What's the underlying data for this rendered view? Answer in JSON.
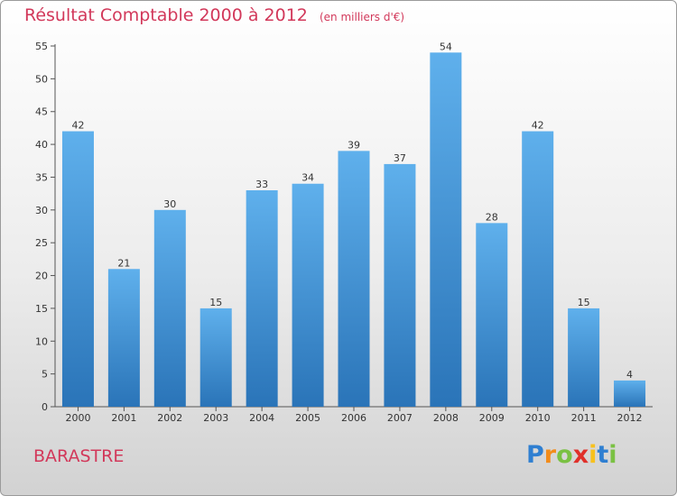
{
  "chart_data": {
    "type": "bar",
    "title": "Résultat Comptable 2000 à 2012",
    "subtitle": "(en milliers d'€)",
    "categories": [
      "2000",
      "2001",
      "2002",
      "2003",
      "2004",
      "2005",
      "2006",
      "2007",
      "2008",
      "2009",
      "2010",
      "2011",
      "2012"
    ],
    "values": [
      42,
      21,
      30,
      15,
      33,
      34,
      39,
      37,
      54,
      28,
      42,
      15,
      4
    ],
    "xlabel": "",
    "ylabel": "",
    "ylim": [
      0,
      55
    ],
    "yticks": [
      0,
      5,
      10,
      15,
      20,
      25,
      30,
      35,
      40,
      45,
      50,
      55
    ],
    "grid": false,
    "bar_color": "#3d8fd6",
    "bar_color_light": "#5fb0ec",
    "bar_color_dark": "#2a74b8"
  },
  "commune": "BARASTRE",
  "logo": {
    "letters": [
      "P",
      "r",
      "o",
      "x",
      "i",
      "t",
      "i"
    ],
    "colors": [
      "#2f7fd1",
      "#f28c1a",
      "#7ac143",
      "#e0302a",
      "#f7c11d",
      "#2f7fd1",
      "#7ac143"
    ]
  },
  "title_color": "#d2385a"
}
